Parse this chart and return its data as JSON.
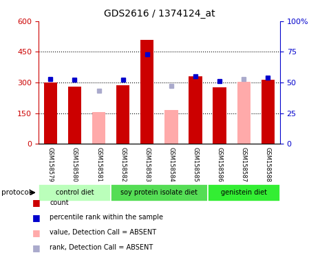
{
  "title": "GDS2616 / 1374124_at",
  "samples": [
    "GSM158579",
    "GSM158580",
    "GSM158581",
    "GSM158582",
    "GSM158583",
    "GSM158584",
    "GSM158585",
    "GSM158586",
    "GSM158587",
    "GSM158588"
  ],
  "count_values": [
    300,
    280,
    null,
    285,
    510,
    null,
    330,
    275,
    null,
    315
  ],
  "count_absent_values": [
    null,
    null,
    155,
    null,
    null,
    165,
    null,
    null,
    305,
    null
  ],
  "rank_values": [
    53,
    52,
    null,
    52,
    73,
    null,
    55,
    51,
    null,
    54
  ],
  "rank_absent_values": [
    null,
    null,
    43,
    null,
    null,
    47,
    null,
    null,
    53,
    null
  ],
  "group_defs": [
    {
      "start": 0,
      "end": 2,
      "label": "control diet",
      "color": "#bbffbb"
    },
    {
      "start": 3,
      "end": 6,
      "label": "soy protein isolate diet",
      "color": "#55dd55"
    },
    {
      "start": 7,
      "end": 9,
      "label": "genistein diet",
      "color": "#33ee33"
    }
  ],
  "ylim_left": [
    0,
    600
  ],
  "ylim_right": [
    0,
    100
  ],
  "yticks_left": [
    0,
    150,
    300,
    450,
    600
  ],
  "yticks_right": [
    0,
    25,
    50,
    75,
    100
  ],
  "color_count": "#cc0000",
  "color_rank": "#0000cc",
  "color_absent_value": "#ffaaaa",
  "color_absent_rank": "#aaaacc",
  "grid_vals": [
    150,
    300,
    450
  ],
  "bg_label": "#cccccc"
}
